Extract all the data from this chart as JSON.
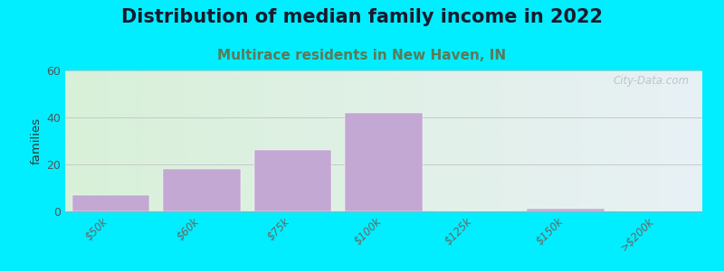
{
  "title": "Distribution of median family income in 2022",
  "subtitle": "Multirace residents in New Haven, IN",
  "categories": [
    "$50k",
    "$60k",
    "$75k",
    "$100k",
    "$125k",
    "$150k",
    ">$200k"
  ],
  "values": [
    7,
    18,
    26,
    42,
    0,
    1,
    0
  ],
  "bar_color": "#c4a8d4",
  "background_outer": "#00eeff",
  "ylim": [
    0,
    60
  ],
  "yticks": [
    0,
    20,
    40,
    60
  ],
  "ylabel": "families",
  "title_fontsize": 15,
  "subtitle_fontsize": 11,
  "title_color": "#1a1a2e",
  "subtitle_color": "#5a7a5a",
  "watermark": "City-Data.com",
  "grid_color": "#c8c8c8",
  "bg_left_color": "#d8f0d8",
  "bg_right_color": "#e8f0f5"
}
